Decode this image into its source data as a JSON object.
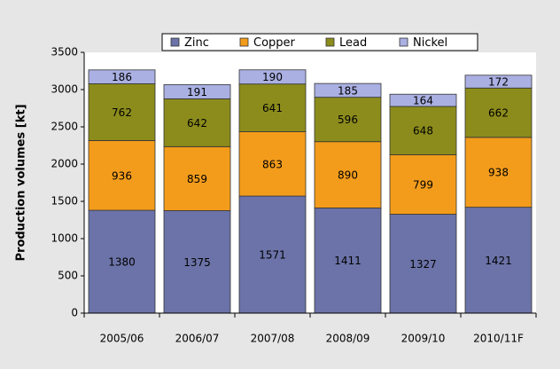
{
  "chart_data": {
    "type": "stacked_bar",
    "y_axis_label": "Production volumes [kt]",
    "categories": [
      "2005/06",
      "2006/07",
      "2007/08",
      "2008/09",
      "2009/10",
      "2010/11F"
    ],
    "series": [
      {
        "name": "Zinc",
        "color": "#6b73a8",
        "values": [
          1380,
          1375,
          1571,
          1411,
          1327,
          1421
        ]
      },
      {
        "name": "Copper",
        "color": "#f39c1c",
        "values": [
          936,
          859,
          863,
          890,
          799,
          938
        ]
      },
      {
        "name": "Lead",
        "color": "#8c8c1c",
        "values": [
          762,
          642,
          641,
          596,
          648,
          662
        ]
      },
      {
        "name": "Nickel",
        "color": "#aab0e2",
        "values": [
          186,
          191,
          190,
          185,
          164,
          172
        ]
      }
    ],
    "ylim": [
      0,
      3500
    ],
    "yticks": [
      0,
      500,
      1000,
      1500,
      2000,
      2500,
      3000,
      3500
    ],
    "legend": "top"
  }
}
